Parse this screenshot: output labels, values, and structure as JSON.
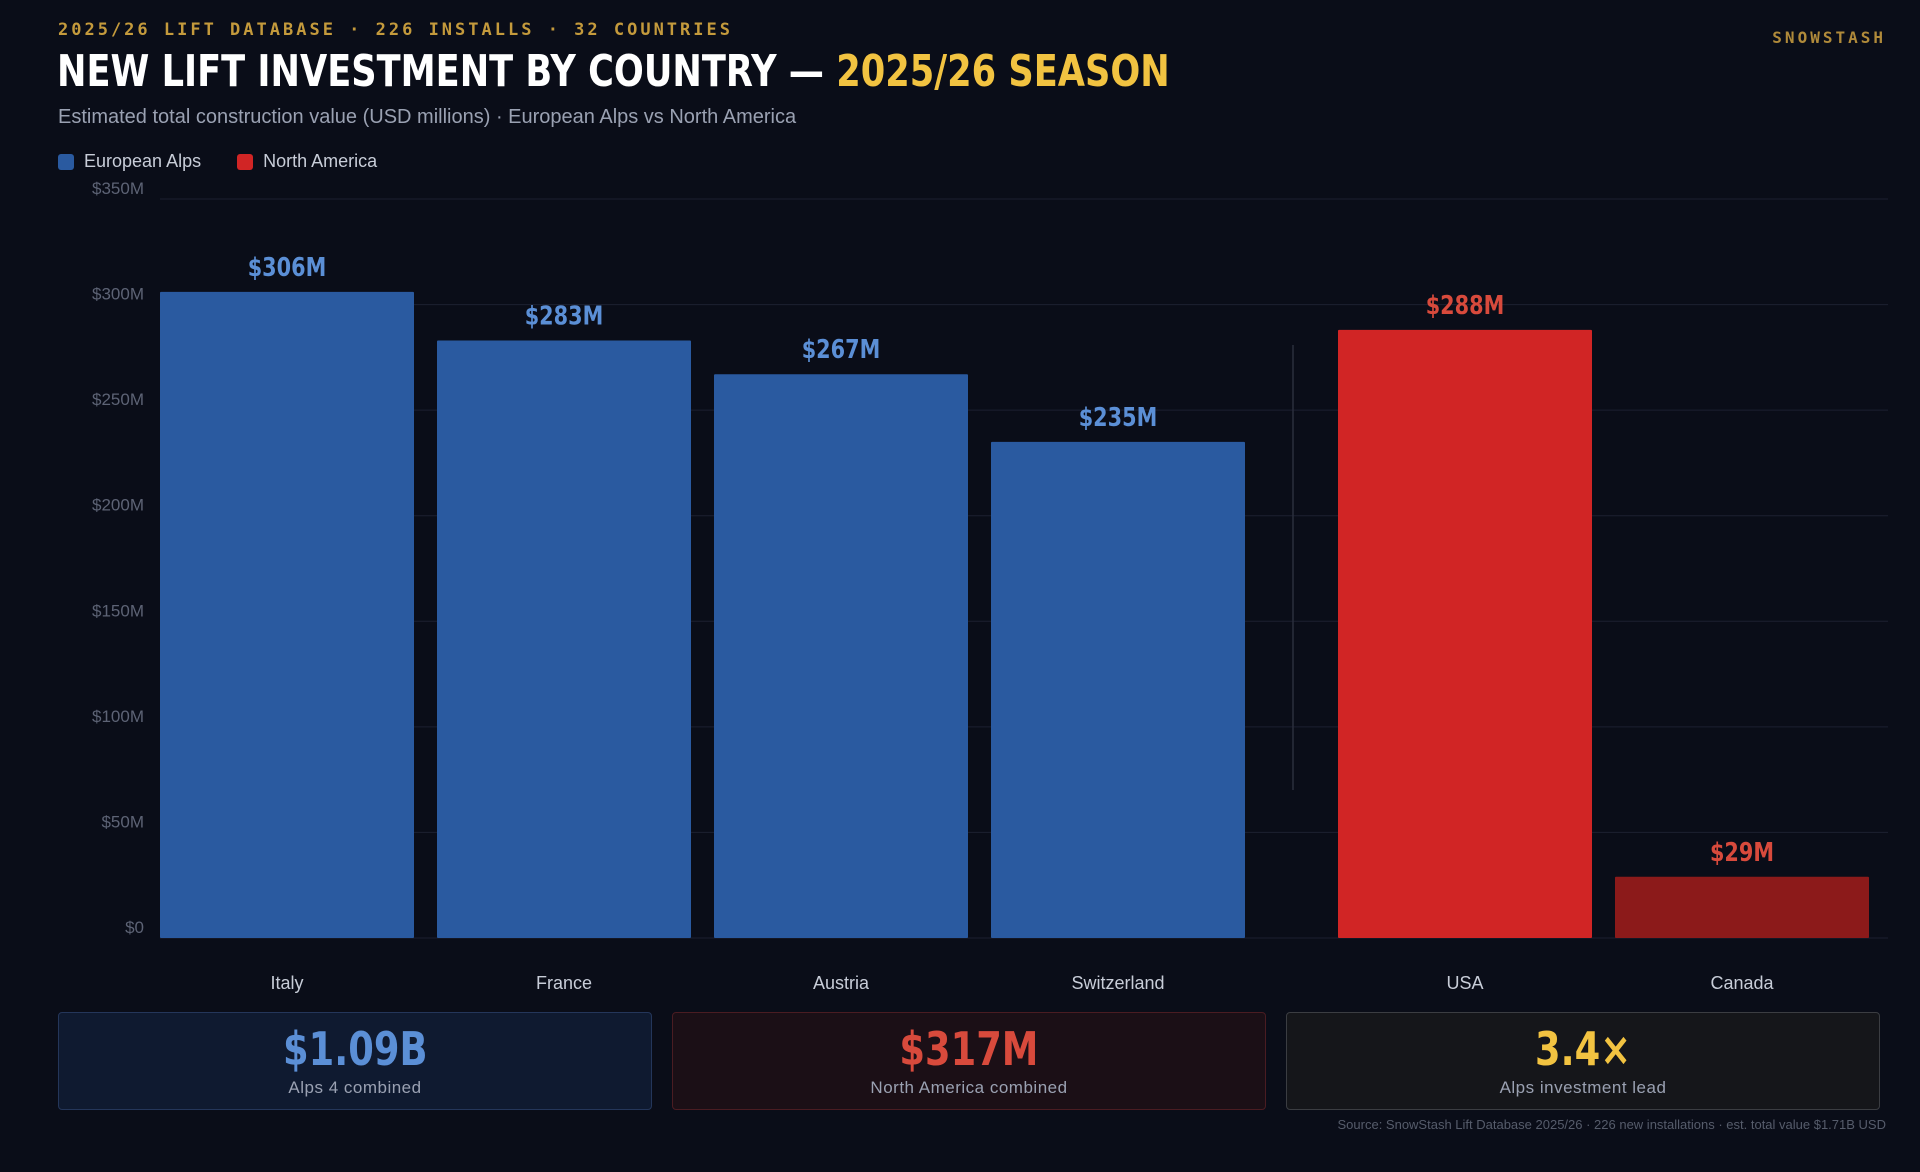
{
  "header": {
    "kicker": "2025/26 LIFT DATABASE · 226 INSTALLS · 32 COUNTRIES",
    "brand": "SNOWSTASH",
    "title_main": "NEW LIFT INVESTMENT BY COUNTRY — ",
    "title_highlight": "2025/26 SEASON",
    "subtitle": "Estimated total construction value (USD millions) · European Alps vs North America"
  },
  "legend": [
    {
      "label": "European Alps",
      "color": "#2a5aa0"
    },
    {
      "label": "North America",
      "color": "#d12525"
    }
  ],
  "colors": {
    "alps": "#2a5aa0",
    "alps_label": "#5b8fd6",
    "na": "#d12525",
    "canada": "#8c1a1a",
    "na_label": "#d84a3c",
    "grid": "#1c2030",
    "axis_text": "#5d6375",
    "category_text": "#c8cdd8",
    "highlight": "#f2c341"
  },
  "chart_data": {
    "type": "bar",
    "title": "NEW LIFT INVESTMENT BY COUNTRY — 2025/26 SEASON",
    "subtitle": "Estimated total construction value (USD millions) · European Alps vs North America",
    "xlabel": "",
    "ylabel": "",
    "ylim": [
      0,
      350
    ],
    "yticks": [
      0,
      50,
      100,
      150,
      200,
      250,
      300,
      350
    ],
    "ytick_labels": [
      "$0",
      "$50M",
      "$100M",
      "$150M",
      "$200M",
      "$250M",
      "$300M",
      "$350M"
    ],
    "grid": true,
    "legend_position": "top-left",
    "categories": [
      "Italy",
      "France",
      "Austria",
      "Switzerland",
      "USA",
      "Canada"
    ],
    "values": [
      306,
      283,
      267,
      235,
      288,
      29
    ],
    "value_labels": [
      "$306M",
      "$283M",
      "$267M",
      "$235M",
      "$288M",
      "$29M"
    ],
    "groups": [
      "European Alps",
      "European Alps",
      "European Alps",
      "European Alps",
      "North America",
      "North America"
    ]
  },
  "summary": {
    "alps_value": "$1.09B",
    "alps_label": "Alps 4 combined",
    "na_value": "$317M",
    "na_label": "North America combined",
    "lead_value": "3.4×",
    "lead_label": "Alps investment lead"
  },
  "source": "Source: SnowStash Lift Database 2025/26 · 226 new installations · est. total value $1.71B USD"
}
